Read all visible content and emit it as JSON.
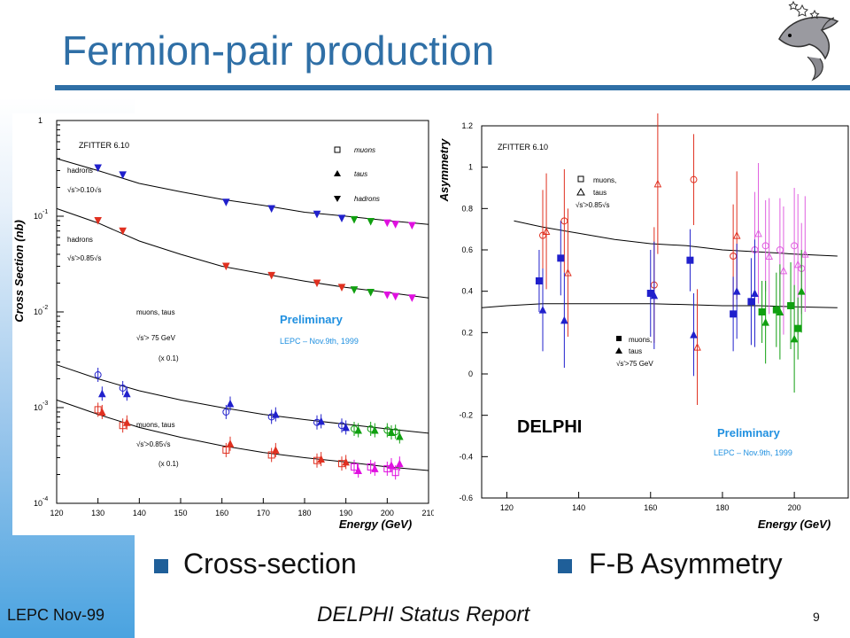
{
  "slide": {
    "title": "Fermion-pair production",
    "bullets": [
      "Cross-section",
      "F-B Asymmetry"
    ],
    "footer_left": "LEPC Nov-99",
    "footer_center": "DELPHI Status Report",
    "page_number": "9",
    "accent_color": "#2f6fa6"
  },
  "chart_data": [
    {
      "type": "scatter",
      "title": "ZFITTER 6.10",
      "xlabel": "Energy (GeV)",
      "ylabel": "Cross Section (nb)",
      "xlim": [
        120,
        210
      ],
      "ylim": [
        0.0001,
        1
      ],
      "yscale": "log",
      "x_ticks": [
        120,
        130,
        140,
        150,
        160,
        170,
        180,
        190,
        200,
        210
      ],
      "y_tick_labels": [
        "1",
        "10",
        "10",
        "10",
        "10"
      ],
      "y_tick_exponents": [
        "",
        "-1",
        "-2",
        "-3",
        "-4"
      ],
      "legend": [
        "muons",
        "taus",
        "hadrons"
      ],
      "annotations": [
        "hadrons",
        "√s'>0.10√s",
        "hadrons",
        "√s'>0.85√s",
        "muons, taus",
        "√s'> 75 GeV",
        "(x 0.1)",
        "muons, taus",
        "√s'>0.85√s",
        "(x 0.1)"
      ],
      "preliminary": [
        "Preliminary",
        "LEPC – Nov.9th, 1999"
      ],
      "series": [
        {
          "name": "hadrons √s'>0.10√s",
          "x": [
            130,
            136,
            161,
            172,
            183,
            189,
            192,
            196,
            200,
            202,
            206
          ],
          "y": [
            0.32,
            0.27,
            0.14,
            0.12,
            0.105,
            0.095,
            0.092,
            0.088,
            0.085,
            0.082,
            0.08
          ]
        },
        {
          "name": "hadrons √s'>0.85√s",
          "x": [
            130,
            136,
            161,
            172,
            183,
            189,
            192,
            196,
            200,
            202,
            206
          ],
          "y": [
            0.09,
            0.07,
            0.03,
            0.024,
            0.02,
            0.018,
            0.017,
            0.016,
            0.015,
            0.0145,
            0.014
          ]
        },
        {
          "name": "muons √s'>75 GeV (x0.1)",
          "x": [
            130,
            136,
            161,
            172,
            183,
            189,
            192,
            196,
            200,
            202
          ],
          "y": [
            0.0022,
            0.0016,
            0.0009,
            0.0008,
            0.0007,
            0.00065,
            0.0006,
            0.0006,
            0.00058,
            0.00056
          ]
        },
        {
          "name": "taus √s'>75 GeV (x0.1)",
          "x": [
            131,
            137,
            162,
            173,
            184,
            190,
            193,
            197,
            201,
            203
          ],
          "y": [
            0.0014,
            0.0014,
            0.0011,
            0.00085,
            0.00072,
            0.00062,
            0.00058,
            0.00058,
            0.00055,
            0.0005
          ]
        },
        {
          "name": "muons √s'>0.85√s (x0.1)",
          "x": [
            130,
            136,
            161,
            172,
            183,
            189,
            192,
            196,
            200,
            202
          ],
          "y": [
            0.00095,
            0.00065,
            0.00036,
            0.00032,
            0.00028,
            0.00026,
            0.00024,
            0.00024,
            0.00023,
            0.00021
          ]
        },
        {
          "name": "taus √s'>0.85√s (x0.1)",
          "x": [
            131,
            137,
            162,
            173,
            184,
            190,
            193,
            197,
            201,
            203
          ],
          "y": [
            0.0009,
            0.0007,
            0.00042,
            0.00036,
            0.00029,
            0.00027,
            0.00022,
            0.00023,
            0.00025,
            0.00026
          ]
        }
      ],
      "theory_curves": [
        {
          "x": [
            120,
            130,
            140,
            150,
            160,
            170,
            180,
            190,
            200,
            210
          ],
          "y": [
            0.4,
            0.3,
            0.22,
            0.18,
            0.15,
            0.13,
            0.11,
            0.1,
            0.09,
            0.082
          ]
        },
        {
          "x": [
            120,
            130,
            140,
            150,
            160,
            170,
            180,
            190,
            200,
            210
          ],
          "y": [
            0.12,
            0.085,
            0.055,
            0.04,
            0.03,
            0.025,
            0.021,
            0.018,
            0.016,
            0.014
          ]
        },
        {
          "x": [
            120,
            130,
            140,
            150,
            160,
            170,
            180,
            190,
            200,
            210
          ],
          "y": [
            0.0028,
            0.002,
            0.0015,
            0.0012,
            0.001,
            0.00085,
            0.00075,
            0.00067,
            0.0006,
            0.00054
          ]
        },
        {
          "x": [
            120,
            130,
            140,
            150,
            160,
            170,
            180,
            190,
            200,
            210
          ],
          "y": [
            0.0012,
            0.00085,
            0.00062,
            0.00049,
            0.0004,
            0.00034,
            0.0003,
            0.00027,
            0.00024,
            0.00022
          ]
        }
      ],
      "colors": {
        "hadrons_low": "#2020cc",
        "hadrons_high": "#d01010",
        "green": "#10a010",
        "magenta": "#e010e0",
        "blue": "#2020cc",
        "red": "#e03020"
      }
    },
    {
      "type": "scatter",
      "title": "ZFITTER 6.10",
      "xlabel": "Energy (GeV)",
      "ylabel": "Asymmetry",
      "xlim": [
        113,
        215
      ],
      "ylim": [
        -0.6,
        1.2
      ],
      "x_ticks": [
        120,
        140,
        160,
        180,
        200
      ],
      "y_ticks": [
        -0.6,
        -0.4,
        -0.2,
        0,
        0.2,
        0.4,
        0.6,
        0.8,
        1,
        1.2
      ],
      "legend": [
        "muons,",
        "taus",
        "√s'>0.85√s",
        "muons,",
        "taus",
        "√s'>75 GeV"
      ],
      "label": "DELPHI",
      "preliminary": [
        "Preliminary",
        "LEPC – Nov.9th, 1999"
      ],
      "series": [
        {
          "name": "muons √s'>0.85√s",
          "x": [
            130,
            136,
            161,
            172,
            183,
            189,
            192,
            196,
            200,
            202
          ],
          "y": [
            0.67,
            0.74,
            0.43,
            0.94,
            0.57,
            0.6,
            0.62,
            0.6,
            0.62,
            0.51
          ]
        },
        {
          "name": "taus √s'>0.85√s",
          "x": [
            131,
            137,
            162,
            173,
            184,
            190,
            193,
            197,
            201,
            203
          ],
          "y": [
            0.69,
            0.49,
            0.92,
            0.13,
            0.67,
            0.68,
            0.57,
            0.5,
            0.53,
            0.58
          ]
        },
        {
          "name": "muons √s'>75 GeV",
          "x": [
            129,
            135,
            160,
            171,
            183,
            188,
            191,
            195,
            199,
            201
          ],
          "y": [
            0.45,
            0.56,
            0.39,
            0.55,
            0.29,
            0.35,
            0.3,
            0.31,
            0.33,
            0.22
          ]
        },
        {
          "name": "taus √s'>75 GeV",
          "x": [
            130,
            136,
            161,
            172,
            184,
            189,
            192,
            196,
            200,
            202
          ],
          "y": [
            0.31,
            0.26,
            0.38,
            0.19,
            0.4,
            0.39,
            0.25,
            0.3,
            0.17,
            0.4
          ]
        }
      ],
      "theory_curves": [
        {
          "x": [
            122,
            130,
            140,
            150,
            160,
            170,
            180,
            190,
            200,
            212
          ],
          "y": [
            0.74,
            0.71,
            0.68,
            0.65,
            0.63,
            0.62,
            0.6,
            0.59,
            0.58,
            0.57
          ]
        },
        {
          "x": [
            113,
            120,
            130,
            140,
            150,
            160,
            170,
            180,
            190,
            200,
            212
          ],
          "y": [
            0.32,
            0.33,
            0.34,
            0.34,
            0.34,
            0.34,
            0.335,
            0.33,
            0.33,
            0.325,
            0.32
          ]
        }
      ],
      "colors": {
        "red": "#e03020",
        "magenta": "#e060e0",
        "blue": "#2020cc",
        "green": "#10a010",
        "preliminary": "#2090e0"
      }
    }
  ]
}
